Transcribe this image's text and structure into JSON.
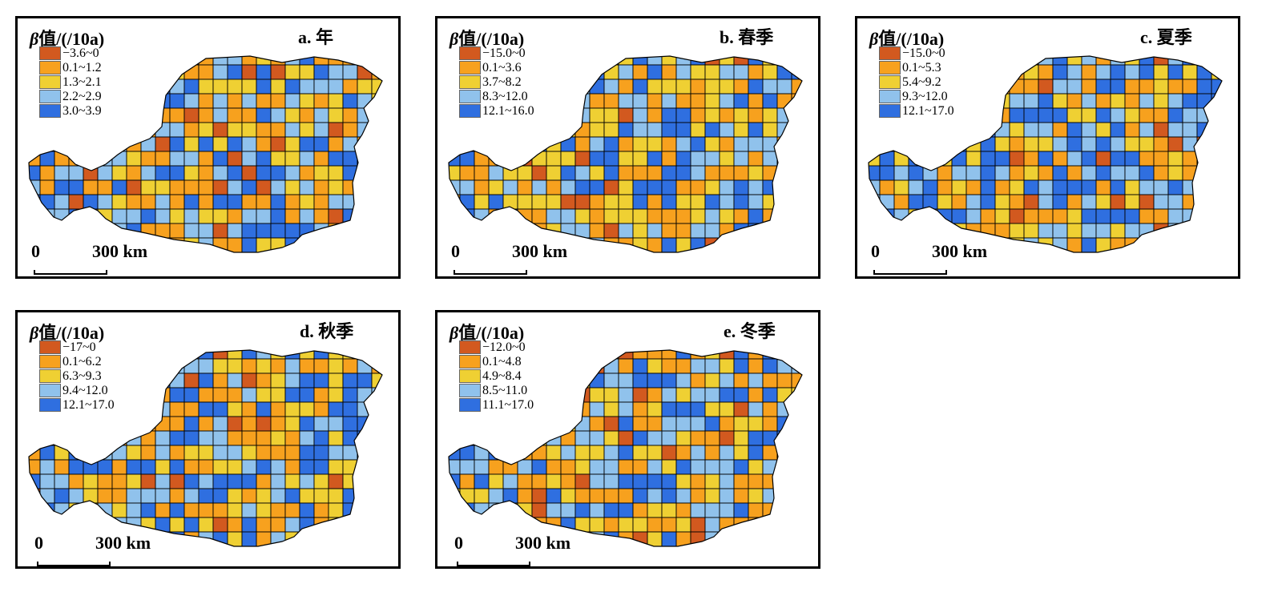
{
  "colors": [
    "#d2591f",
    "#f7a11e",
    "#efd033",
    "#90c2ec",
    "#2f6fe0"
  ],
  "panels": [
    {
      "title_sym": "β",
      "title_rest": "值/(/10a)",
      "label": "a. 年",
      "legend": [
        "−3.6~0",
        "0.1~1.2",
        "1.3~2.1",
        "2.2~2.9",
        "3.0~3.9"
      ],
      "scale_zero": "0",
      "scale_text": "300 km"
    },
    {
      "title_sym": "β",
      "title_rest": "值/(/10a)",
      "label": "b. 春季",
      "legend": [
        "−15.0~0",
        "0.1~3.6",
        "3.7~8.2",
        "8.3~12.0",
        "12.1~16.0"
      ],
      "scale_zero": "0",
      "scale_text": "300 km"
    },
    {
      "title_sym": "β",
      "title_rest": "值/(/10a)",
      "label": "c. 夏季",
      "legend": [
        "−15.0~0",
        "0.1~5.3",
        "5.4~9.2",
        "9.3~12.0",
        "12.1~17.0"
      ],
      "scale_zero": "0",
      "scale_text": "300 km"
    },
    {
      "title_sym": "β",
      "title_rest": "值/(/10a)",
      "label": "d. 秋季",
      "legend": [
        "−17~0",
        "0.1~6.2",
        "6.3~9.3",
        "9.4~12.0",
        "12.1~17.0"
      ],
      "scale_zero": "0",
      "scale_text": "300 km"
    },
    {
      "title_sym": "β",
      "title_rest": "值/(/10a)",
      "label": "e. 冬季",
      "legend": [
        "−12.0~0",
        "0.1~4.8",
        "4.9~8.4",
        "8.5~11.0",
        "11.1~17.0"
      ],
      "scale_zero": "0",
      "scale_text": "300 km"
    }
  ]
}
